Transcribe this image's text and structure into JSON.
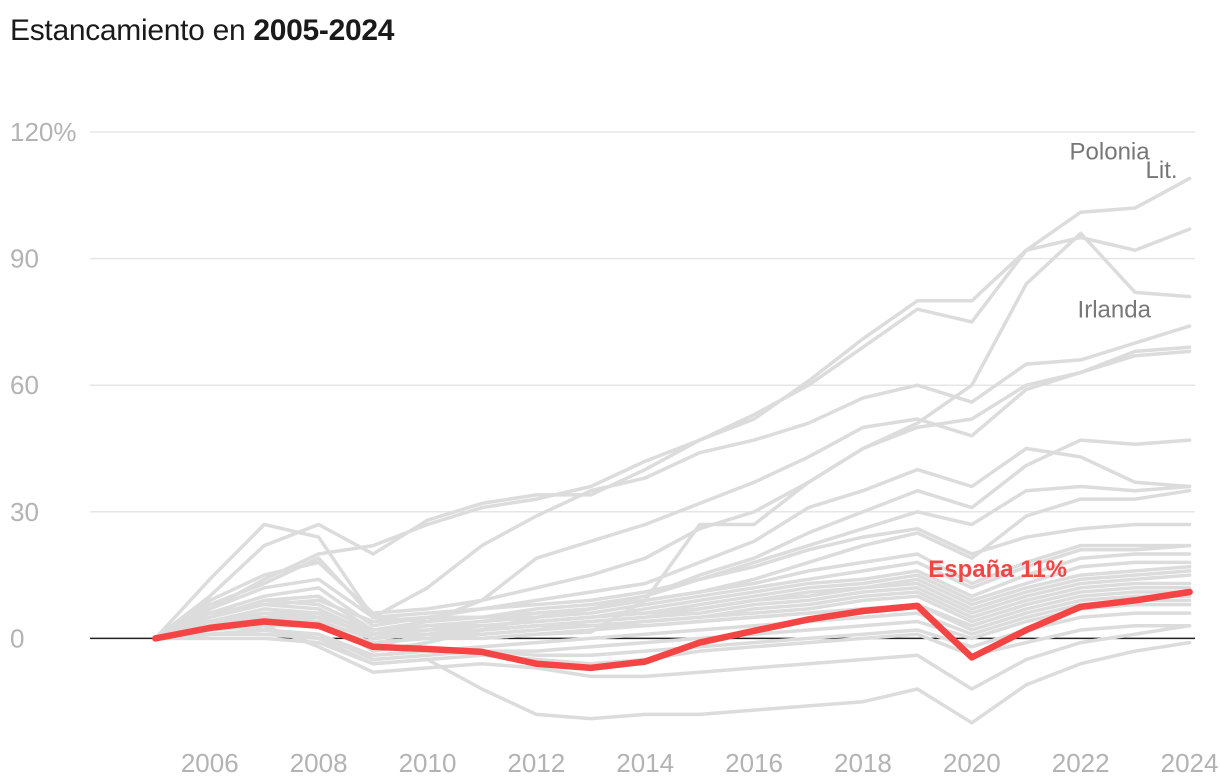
{
  "title": {
    "prefix": "Estancamiento en ",
    "bold": "2005-2024"
  },
  "chart_data": {
    "type": "line",
    "title": "Estancamiento en 2005-2024",
    "xlabel": "",
    "ylabel": "",
    "x": [
      2005,
      2006,
      2007,
      2008,
      2009,
      2010,
      2011,
      2012,
      2013,
      2014,
      2015,
      2016,
      2017,
      2018,
      2019,
      2020,
      2021,
      2022,
      2023,
      2024
    ],
    "xlim": [
      2003.8,
      2024.1
    ],
    "ylim": [
      -30,
      120
    ],
    "xticks": [
      {
        "value": 2006,
        "label": "2006"
      },
      {
        "value": 2008,
        "label": "2008"
      },
      {
        "value": 2010,
        "label": "2010"
      },
      {
        "value": 2012,
        "label": "2012"
      },
      {
        "value": 2014,
        "label": "2014"
      },
      {
        "value": 2016,
        "label": "2016"
      },
      {
        "value": 2018,
        "label": "2018"
      },
      {
        "value": 2020,
        "label": "2020"
      },
      {
        "value": 2022,
        "label": "2022"
      },
      {
        "value": 2024,
        "label": "2024"
      }
    ],
    "yticks": [
      {
        "value": 0,
        "label": "0"
      },
      {
        "value": 30,
        "label": "30"
      },
      {
        "value": 60,
        "label": "60"
      },
      {
        "value": 90,
        "label": "90"
      },
      {
        "value": 120,
        "label": "120%"
      }
    ],
    "grid": true,
    "highlight_color": "#f44444",
    "background_color": "#dcdcdc",
    "highlight": {
      "name": "España",
      "label": "España 11%",
      "values": [
        0,
        2.5,
        4,
        3,
        -2,
        -2.5,
        -3.2,
        -6,
        -7,
        -5.5,
        -1,
        1.8,
        4.5,
        6.5,
        7.7,
        -4.5,
        2,
        7.5,
        9,
        11
      ]
    },
    "series": [
      {
        "name": "Polonia",
        "label": "Polonia",
        "values": [
          0,
          7,
          14,
          20,
          22,
          27,
          31,
          33,
          36,
          42,
          47,
          52,
          61,
          71,
          80,
          80,
          92,
          101,
          102,
          109
        ]
      },
      {
        "name": "Lituania",
        "label": "Lit.",
        "values": [
          0,
          10,
          22,
          27,
          20,
          28,
          32,
          34,
          34,
          40,
          47,
          53,
          60,
          69,
          78,
          75,
          92,
          95,
          92,
          97
        ]
      },
      {
        "name": "Irlanda",
        "label": "Irlanda",
        "values": [
          0,
          4,
          5,
          3,
          -2,
          1,
          0,
          1,
          1.5,
          9,
          27,
          27,
          37,
          45,
          51,
          60,
          84,
          96,
          82,
          81
        ]
      },
      {
        "name": "s4",
        "values": [
          0,
          8,
          13,
          19,
          5,
          4,
          9,
          19,
          23,
          27,
          32,
          37,
          43,
          50,
          52,
          48,
          59,
          63,
          67,
          68
        ]
      },
      {
        "name": "s5",
        "values": [
          0,
          14,
          27,
          24,
          5,
          12,
          22,
          29,
          35,
          38,
          44,
          47,
          51,
          57,
          60,
          56,
          65,
          66,
          70,
          74
        ]
      },
      {
        "name": "s6",
        "values": [
          0,
          9,
          15,
          18,
          6,
          7,
          9,
          12,
          15,
          19,
          26,
          30,
          37,
          45,
          50,
          52,
          60,
          63,
          68,
          69
        ]
      },
      {
        "name": "s7",
        "values": [
          0,
          6,
          10,
          12,
          3,
          5,
          7,
          9,
          11,
          13,
          18,
          23,
          31,
          35,
          40,
          36,
          45,
          43,
          37,
          36
        ]
      },
      {
        "name": "s8",
        "values": [
          0,
          5,
          9,
          10,
          2,
          4,
          5,
          7,
          8,
          10,
          15,
          19,
          25,
          30,
          35,
          31,
          41,
          47,
          46,
          47
        ]
      },
      {
        "name": "s9",
        "values": [
          0,
          7,
          12,
          14,
          5,
          6,
          7,
          8,
          9,
          11,
          14,
          18,
          22,
          26,
          30,
          27,
          35,
          36,
          35,
          36
        ]
      },
      {
        "name": "s10",
        "values": [
          0,
          6,
          8,
          9,
          4,
          5,
          5,
          6,
          7,
          9,
          11,
          14,
          18,
          22,
          25,
          19,
          29,
          33,
          33,
          35
        ]
      },
      {
        "name": "s11",
        "values": [
          0,
          4,
          6,
          5,
          -3,
          -1,
          2,
          5,
          7,
          10,
          14,
          17,
          21,
          24,
          26,
          20,
          24,
          26,
          27,
          27
        ]
      },
      {
        "name": "s12",
        "values": [
          0,
          5,
          9,
          8,
          2,
          3,
          4,
          6,
          7,
          9,
          11,
          13,
          16,
          18,
          20,
          13,
          18,
          22,
          22,
          22
        ]
      },
      {
        "name": "s13",
        "values": [
          0,
          5,
          8,
          7,
          1,
          3,
          4,
          5,
          6,
          8,
          10,
          12,
          14,
          16,
          18,
          12,
          17,
          21,
          21,
          22
        ]
      },
      {
        "name": "s14",
        "values": [
          0,
          4,
          7,
          6,
          0,
          2,
          3,
          4,
          5,
          7,
          9,
          11,
          13,
          14,
          16,
          10,
          15,
          19,
          20,
          20
        ]
      },
      {
        "name": "s15",
        "values": [
          0,
          3,
          6,
          5,
          1,
          2,
          3,
          4,
          5,
          6,
          8,
          10,
          12,
          13,
          15,
          9,
          13,
          17,
          18,
          18
        ]
      },
      {
        "name": "s16",
        "values": [
          0,
          3,
          5,
          4,
          0,
          1,
          2,
          3,
          4,
          5,
          7,
          9,
          11,
          12,
          14,
          8,
          12,
          15,
          16,
          17
        ]
      },
      {
        "name": "s17",
        "values": [
          0,
          4,
          6,
          6,
          2,
          3,
          3,
          4,
          5,
          6,
          7,
          9,
          10,
          12,
          13,
          7,
          11,
          14,
          15,
          16
        ]
      },
      {
        "name": "s18",
        "values": [
          0,
          3,
          5,
          5,
          1,
          2,
          2,
          3,
          4,
          5,
          6,
          8,
          9,
          11,
          12,
          6,
          10,
          13,
          14,
          15
        ]
      },
      {
        "name": "s19",
        "values": [
          0,
          2,
          4,
          4,
          0,
          1,
          2,
          3,
          3,
          4,
          5,
          7,
          8,
          10,
          11,
          5,
          9,
          12,
          13,
          13
        ]
      },
      {
        "name": "s20",
        "values": [
          0,
          2,
          3,
          3,
          -1,
          0,
          1,
          2,
          3,
          4,
          5,
          6,
          7,
          9,
          10,
          4,
          8,
          11,
          12,
          12
        ]
      },
      {
        "name": "s21",
        "values": [
          0,
          3,
          5,
          4,
          0,
          1,
          1,
          2,
          3,
          3,
          4,
          5,
          6,
          7,
          8,
          3,
          7,
          10,
          11,
          11
        ]
      },
      {
        "name": "s22",
        "values": [
          0,
          2,
          3,
          3,
          -1,
          0,
          0,
          1,
          2,
          3,
          4,
          5,
          6,
          7,
          8,
          2,
          6,
          9,
          10,
          10
        ]
      },
      {
        "name": "s23",
        "values": [
          0,
          1,
          2,
          1,
          -4,
          -3,
          -2,
          -1,
          0,
          1,
          2,
          3,
          4,
          5,
          6,
          1,
          5,
          8,
          9,
          9
        ]
      },
      {
        "name": "s24",
        "values": [
          0,
          1,
          2,
          1,
          -5,
          -4,
          -3,
          -3,
          -2,
          -1,
          0,
          1,
          2,
          3,
          4,
          0,
          4,
          7,
          8,
          8
        ]
      },
      {
        "name": "s25",
        "values": [
          0,
          1,
          1,
          0,
          -4,
          -3,
          -3,
          -4,
          -4,
          -3,
          -2,
          -1,
          0,
          1,
          2,
          -2,
          2,
          5,
          6,
          6
        ]
      },
      {
        "name": "s26",
        "values": [
          0,
          0,
          0,
          -1,
          -6,
          -5,
          -4,
          -5,
          -6,
          -5,
          -3,
          -2,
          -1,
          0,
          1,
          -4,
          -1,
          2,
          3,
          3
        ]
      },
      {
        "name": "s27",
        "values": [
          0,
          4,
          3,
          -2,
          -8,
          -7,
          -6,
          -7,
          -9,
          -9,
          -8,
          -7,
          -6,
          -5,
          -4,
          -12,
          -5,
          -1,
          1,
          3
        ]
      },
      {
        "name": "s28",
        "values": [
          0,
          3,
          2,
          0,
          -6,
          -5,
          -12,
          -18,
          -19,
          -18,
          -18,
          -17,
          -16,
          -15,
          -12,
          -20,
          -11,
          -6,
          -3,
          -1
        ]
      }
    ]
  }
}
